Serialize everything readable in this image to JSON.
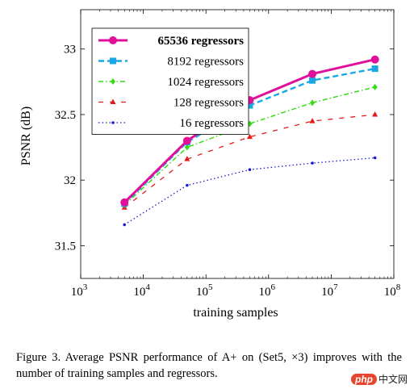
{
  "chart_data": {
    "type": "line",
    "xscale": "log",
    "xlabel": "training samples",
    "ylabel": "PSNR (dB)",
    "xlim": [
      1000,
      100000000
    ],
    "ylim": [
      31.25,
      33.3
    ],
    "xticks": [
      {
        "value": 1000,
        "base": "10",
        "exp": "3"
      },
      {
        "value": 10000,
        "base": "10",
        "exp": "4"
      },
      {
        "value": 100000,
        "base": "10",
        "exp": "5"
      },
      {
        "value": 1000000,
        "base": "10",
        "exp": "6"
      },
      {
        "value": 10000000,
        "base": "10",
        "exp": "7"
      },
      {
        "value": 100000000,
        "base": "10",
        "exp": "8"
      }
    ],
    "yticks": [
      {
        "value": 31.5,
        "label": "31.5"
      },
      {
        "value": 32,
        "label": "32"
      },
      {
        "value": 32.5,
        "label": "32.5"
      },
      {
        "value": 33,
        "label": "33"
      }
    ],
    "grid": false,
    "legend_position": "top-left",
    "series": [
      {
        "name": "65536 regressors",
        "color": "#e0109a",
        "marker": "circle",
        "dash": "solid",
        "width": 3,
        "bold": true,
        "x": [
          5000,
          50000,
          500000,
          5000000,
          50000000
        ],
        "y": [
          31.83,
          32.3,
          32.61,
          32.81,
          32.92
        ]
      },
      {
        "name": "8192 regressors",
        "color": "#19a8e6",
        "marker": "square",
        "dash": "dashed",
        "width": 2.4,
        "bold": false,
        "x": [
          5000,
          50000,
          500000,
          5000000,
          50000000
        ],
        "y": [
          31.82,
          32.29,
          32.57,
          32.76,
          32.85
        ]
      },
      {
        "name": "1024 regressors",
        "color": "#33dd11",
        "marker": "diamond",
        "dash": "dashdot",
        "width": 1.5,
        "bold": false,
        "x": [
          5000,
          50000,
          500000,
          5000000,
          50000000
        ],
        "y": [
          31.81,
          32.25,
          32.43,
          32.59,
          32.71
        ]
      },
      {
        "name": "128 regressors",
        "color": "#e41a1a",
        "marker": "triangle",
        "dash": "loosedash",
        "width": 1.3,
        "bold": false,
        "x": [
          5000,
          50000,
          500000,
          5000000,
          50000000
        ],
        "y": [
          31.79,
          32.16,
          32.33,
          32.45,
          32.5
        ]
      },
      {
        "name": "16 regressors",
        "color": "#1a1ad6",
        "marker": "dot",
        "dash": "dotted",
        "width": 1.3,
        "bold": false,
        "x": [
          5000,
          50000,
          500000,
          5000000,
          50000000
        ],
        "y": [
          31.66,
          31.96,
          32.08,
          32.13,
          32.17
        ]
      }
    ]
  },
  "caption": {
    "text": "Figure 3. Average PSNR performance of A+ on (Set5, ×3) improves with the number of training samples and regressors."
  },
  "watermark": {
    "badge": "php",
    "text": "中文网"
  }
}
